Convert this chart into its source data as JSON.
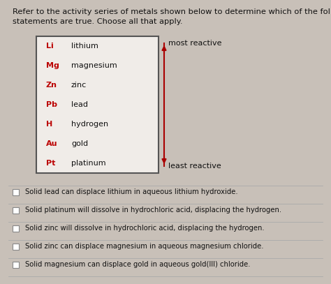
{
  "title_line1": "Refer to the activity series of metals shown below to determine which of the following",
  "title_line2": "statements are true. Choose all that apply.",
  "symbols": [
    "Li",
    "Mg",
    "Zn",
    "Pb",
    "H",
    "Au",
    "Pt"
  ],
  "names": [
    "lithium",
    "magnesium",
    "zinc",
    "lead",
    "hydrogen",
    "gold",
    "platinum"
  ],
  "symbol_color": "#bb0000",
  "name_color": "#111111",
  "most_reactive": "most reactive",
  "least_reactive": "least reactive",
  "arrow_color": "#aa0000",
  "statements": [
    "Solid lead can displace lithium in aqueous lithium hydroxide.",
    "Solid platinum will dissolve in hydrochloric acid, displacing the hydrogen.",
    "Solid zinc will dissolve in hydrochloric acid, displacing the hydrogen.",
    "Solid zinc can displace magnesium in aqueous magnesium chloride.",
    "Solid magnesium can displace gold in aqueous gold(III) chloride."
  ],
  "bg_color": "#c8c0b8",
  "table_bg": "#f0ece8",
  "table_border": "#555555",
  "title_fontsize": 8.2,
  "content_fontsize": 8.0,
  "statement_fontsize": 7.2
}
